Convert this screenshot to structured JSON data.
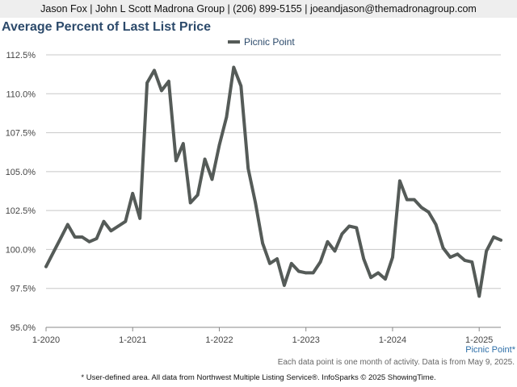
{
  "header": {
    "contact": "Jason Fox | John L Scott Madrona Group | (206) 899-5155 | joeandjason@themadronagroup.com"
  },
  "footer": {
    "series_tag": "Picnic Point*",
    "note": "Each data point is one month of activity. Data is from May 9, 2025.",
    "disclaimer": "* User-defined area. All data from Northwest Multiple Listing Service®. InfoSparks © 2025 ShowingTime."
  },
  "chart_data": {
    "type": "line",
    "title": "Average Percent of Last List Price",
    "xlabel": "",
    "ylabel": "",
    "legend_position": "top-center",
    "grid": true,
    "colors": {
      "line": "#555b58",
      "title": "#2c4a6b",
      "axis": "#888888"
    },
    "ylim": [
      95.0,
      112.5
    ],
    "y_ticks": [
      "112.5%",
      "110.0%",
      "107.5%",
      "105.0%",
      "102.5%",
      "100.0%",
      "97.5%",
      "95.0%"
    ],
    "y_tick_values": [
      112.5,
      110.0,
      107.5,
      105.0,
      102.5,
      100.0,
      97.5,
      95.0
    ],
    "x_ticks": [
      "1-2020",
      "1-2021",
      "1-2022",
      "1-2023",
      "1-2024",
      "1-2025"
    ],
    "x_tick_dates": [
      "2020-01",
      "2021-01",
      "2022-01",
      "2023-01",
      "2024-01",
      "2025-01"
    ],
    "x_range": [
      "2020-01",
      "2025-04"
    ],
    "series": [
      {
        "name": "Picnic Point",
        "points": [
          [
            "2020-01",
            98.9
          ],
          [
            "2020-02",
            99.8
          ],
          [
            "2020-03",
            100.7
          ],
          [
            "2020-04",
            101.6
          ],
          [
            "2020-05",
            100.8
          ],
          [
            "2020-06",
            100.8
          ],
          [
            "2020-07",
            100.5
          ],
          [
            "2020-08",
            100.7
          ],
          [
            "2020-09",
            101.8
          ],
          [
            "2020-10",
            101.2
          ],
          [
            "2020-11",
            101.5
          ],
          [
            "2020-12",
            101.8
          ],
          [
            "2021-01",
            103.6
          ],
          [
            "2021-02",
            102.0
          ],
          [
            "2021-03",
            110.7
          ],
          [
            "2021-04",
            111.5
          ],
          [
            "2021-05",
            110.2
          ],
          [
            "2021-06",
            110.8
          ],
          [
            "2021-07",
            105.7
          ],
          [
            "2021-08",
            106.8
          ],
          [
            "2021-09",
            103.0
          ],
          [
            "2021-10",
            103.5
          ],
          [
            "2021-11",
            105.8
          ],
          [
            "2021-12",
            104.5
          ],
          [
            "2022-01",
            106.7
          ],
          [
            "2022-02",
            108.5
          ],
          [
            "2022-03",
            111.7
          ],
          [
            "2022-04",
            110.5
          ],
          [
            "2022-05",
            105.2
          ],
          [
            "2022-06",
            103.0
          ],
          [
            "2022-07",
            100.4
          ],
          [
            "2022-08",
            99.1
          ],
          [
            "2022-09",
            99.4
          ],
          [
            "2022-10",
            97.7
          ],
          [
            "2022-11",
            99.1
          ],
          [
            "2022-12",
            98.6
          ],
          [
            "2023-01",
            98.5
          ],
          [
            "2023-02",
            98.5
          ],
          [
            "2023-03",
            99.2
          ],
          [
            "2023-04",
            100.5
          ],
          [
            "2023-05",
            99.9
          ],
          [
            "2023-06",
            101.0
          ],
          [
            "2023-07",
            101.5
          ],
          [
            "2023-08",
            101.4
          ],
          [
            "2023-09",
            99.4
          ],
          [
            "2023-10",
            98.2
          ],
          [
            "2023-11",
            98.5
          ],
          [
            "2023-12",
            98.1
          ],
          [
            "2024-01",
            99.5
          ],
          [
            "2024-02",
            104.4
          ],
          [
            "2024-03",
            103.2
          ],
          [
            "2024-04",
            103.2
          ],
          [
            "2024-05",
            102.7
          ],
          [
            "2024-06",
            102.4
          ],
          [
            "2024-07",
            101.6
          ],
          [
            "2024-08",
            100.1
          ],
          [
            "2024-09",
            99.5
          ],
          [
            "2024-10",
            99.7
          ],
          [
            "2024-11",
            99.3
          ],
          [
            "2024-12",
            99.2
          ],
          [
            "2025-01",
            97.0
          ],
          [
            "2025-02",
            99.9
          ],
          [
            "2025-03",
            100.8
          ],
          [
            "2025-04",
            100.6
          ]
        ]
      }
    ]
  }
}
